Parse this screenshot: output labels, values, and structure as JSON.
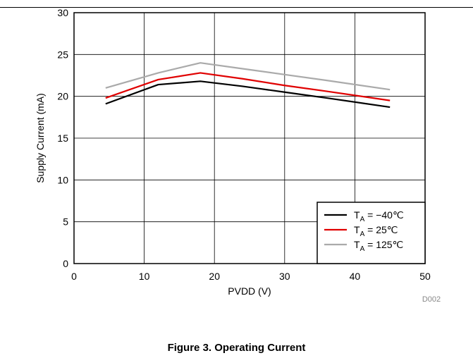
{
  "chart_data": {
    "type": "line",
    "xlabel": "PVDD (V)",
    "ylabel": "Supply Current (mA)",
    "xlim": [
      0,
      50
    ],
    "ylim": [
      0,
      30
    ],
    "x_ticks": [
      0,
      10,
      20,
      30,
      40,
      50
    ],
    "y_ticks": [
      0,
      5,
      10,
      15,
      20,
      25,
      30
    ],
    "grid": true,
    "legend_placement": "bottom-right",
    "series": [
      {
        "name_main": "T",
        "name_sub": "A",
        "name_rest": " = −40℃",
        "color": "#000000",
        "x": [
          4.5,
          12,
          18,
          24,
          30,
          36,
          45
        ],
        "y": [
          19.1,
          21.4,
          21.8,
          21.2,
          20.5,
          19.8,
          18.7
        ]
      },
      {
        "name_main": "T",
        "name_sub": "A",
        "name_rest": " = 25℃",
        "color": "#e00000",
        "x": [
          4.5,
          12,
          18,
          24,
          30,
          36,
          45
        ],
        "y": [
          19.8,
          22.0,
          22.8,
          22.1,
          21.3,
          20.6,
          19.5
        ]
      },
      {
        "name_main": "T",
        "name_sub": "A",
        "name_rest": " = 125℃",
        "color": "#aaaaaa",
        "x": [
          4.5,
          12,
          18,
          24,
          30,
          36,
          45
        ],
        "y": [
          21.0,
          22.8,
          24.0,
          23.3,
          22.6,
          21.9,
          20.8
        ]
      }
    ],
    "annotation": "D002"
  },
  "caption": "Figure 3. Operating Current"
}
